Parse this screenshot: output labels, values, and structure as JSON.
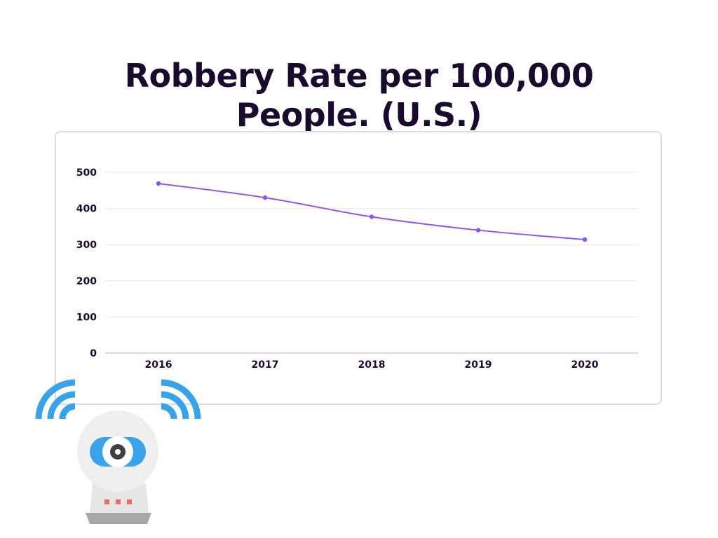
{
  "chart_data": {
    "type": "line",
    "title": "Robbery Rate per 100,000 People. (U.S.)",
    "categories": [
      "2016",
      "2017",
      "2018",
      "2019",
      "2020"
    ],
    "series": [
      {
        "values": [
          469,
          430,
          377,
          340,
          314
        ]
      }
    ],
    "yticks": [
      "0",
      "100",
      "200",
      "300",
      "400",
      "500"
    ],
    "ylim": [
      0,
      500
    ],
    "xlabel": "",
    "ylabel": "",
    "grid": true,
    "legend": "none",
    "line_color": "#8b55f0",
    "grid_color": "#e8e8e8"
  },
  "decoration": {
    "icon": "security-camera-icon",
    "wave_color": "#38a3e8",
    "eye_color": "#38a3e8",
    "led_color": "#f06a6a"
  }
}
